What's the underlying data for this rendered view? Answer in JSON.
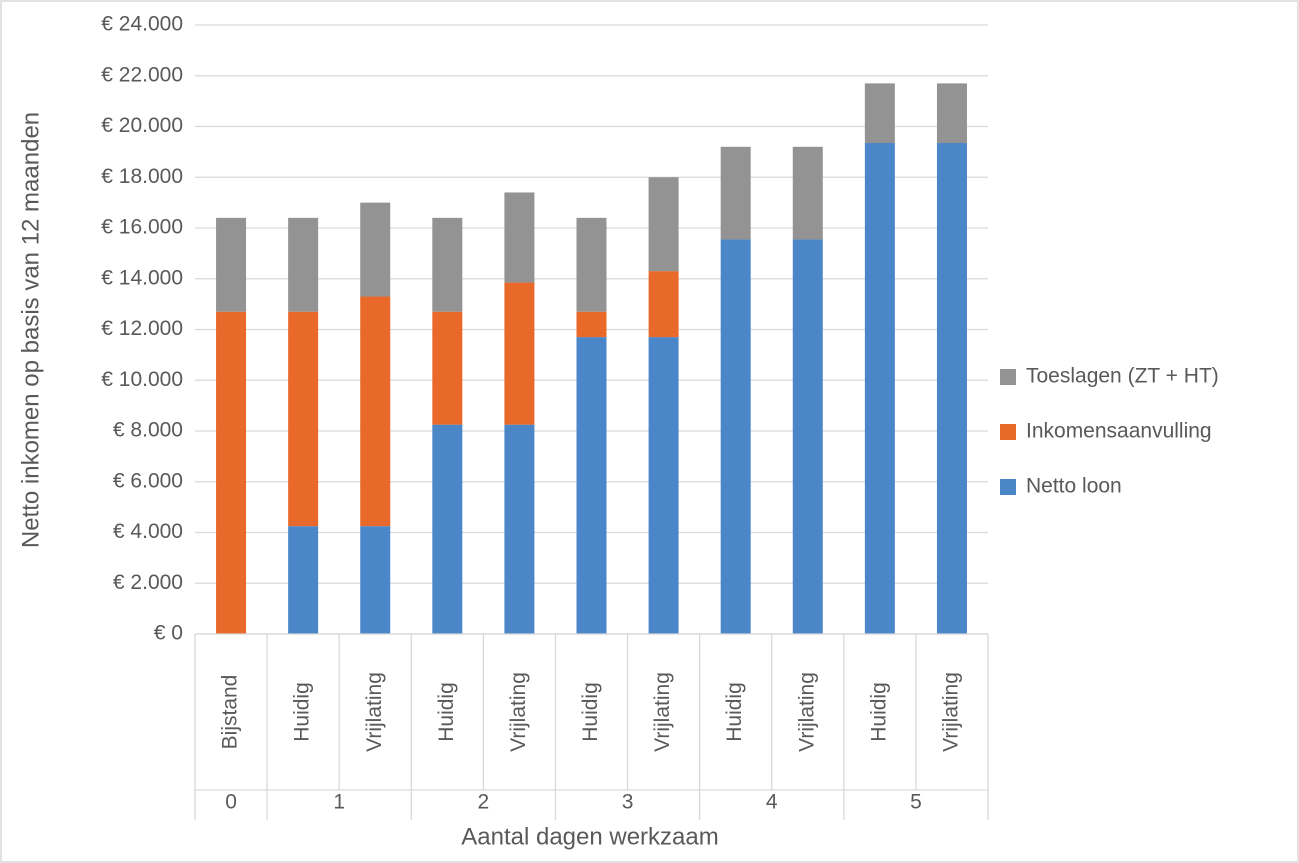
{
  "chart_data": {
    "type": "stacked-bar",
    "y_label": "Netto inkomen op basis van 12 maanden",
    "x_label": "Aantal dagen werkzaam",
    "groups": [
      {
        "name": "0",
        "categories": [
          "Bijstand"
        ]
      },
      {
        "name": "1",
        "categories": [
          "Huidig",
          "Vrijlating"
        ]
      },
      {
        "name": "2",
        "categories": [
          "Huidig",
          "Vrijlating"
        ]
      },
      {
        "name": "3",
        "categories": [
          "Huidig",
          "Vrijlating"
        ]
      },
      {
        "name": "4",
        "categories": [
          "Huidig",
          "Vrijlating"
        ]
      },
      {
        "name": "5",
        "categories": [
          "Huidig",
          "Vrijlating"
        ]
      }
    ],
    "series": [
      {
        "name": "Netto loon",
        "color": "#4a86c8",
        "values": [
          0,
          4250,
          4250,
          8250,
          8250,
          11700,
          11700,
          15550,
          15550,
          19350,
          19350
        ]
      },
      {
        "name": "Inkomensaanvulling",
        "color": "#e8692a",
        "values": [
          12700,
          8450,
          9050,
          4450,
          5600,
          1000,
          2600,
          0,
          0,
          0,
          0
        ]
      },
      {
        "name": "Toeslagen (ZT + HT)",
        "color": "#939393",
        "values": [
          3700,
          3700,
          3700,
          3700,
          3550,
          3700,
          3700,
          3650,
          3650,
          2350,
          2350
        ]
      }
    ],
    "ylim": [
      0,
      24000
    ],
    "yticks": [
      {
        "value": 0,
        "label": "€ 0"
      },
      {
        "value": 2000,
        "label": "€ 2.000"
      },
      {
        "value": 4000,
        "label": "€ 4.000"
      },
      {
        "value": 6000,
        "label": "€ 6.000"
      },
      {
        "value": 8000,
        "label": "€ 8.000"
      },
      {
        "value": 10000,
        "label": "€ 10.000"
      },
      {
        "value": 12000,
        "label": "€ 12.000"
      },
      {
        "value": 14000,
        "label": "€ 14.000"
      },
      {
        "value": 16000,
        "label": "€ 16.000"
      },
      {
        "value": 18000,
        "label": "€ 18.000"
      },
      {
        "value": 20000,
        "label": "€ 20.000"
      },
      {
        "value": 22000,
        "label": "€ 22.000"
      },
      {
        "value": 24000,
        "label": "€ 24.000"
      }
    ],
    "grid": true,
    "legend": "right"
  }
}
